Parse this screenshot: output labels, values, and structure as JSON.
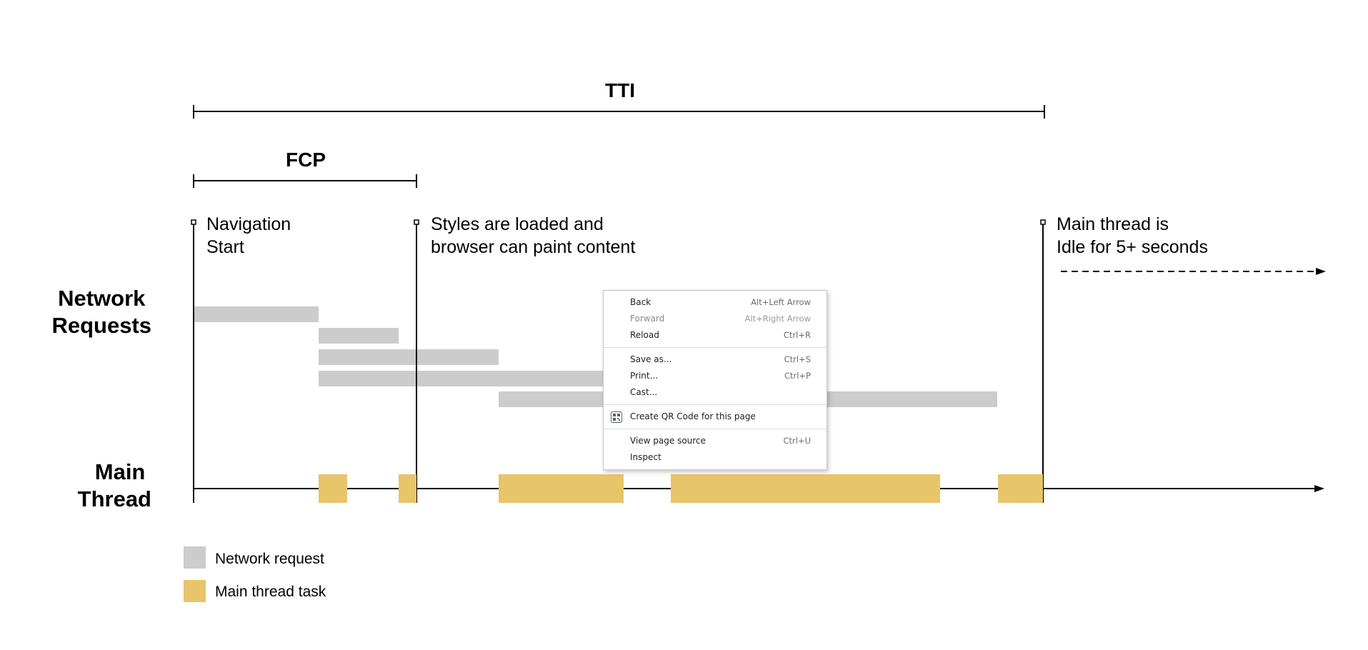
{
  "diagram": {
    "tti_label": "TTI",
    "fcp_label": "FCP",
    "navigation_start": [
      "Navigation",
      "Start"
    ],
    "styles_loaded": [
      "Styles are loaded and",
      "browser can paint content"
    ],
    "main_thread_idle": [
      "Main thread is",
      "Idle for 5+ seconds"
    ],
    "network_requests_label": [
      "Network",
      "Requests"
    ],
    "main_thread_label": [
      "Main",
      "Thread"
    ],
    "legend": {
      "network_request": "Network request",
      "main_thread_task": "Main thread task"
    },
    "colors": {
      "network_request": "#cccccc",
      "main_thread_task": "#e8c46a",
      "line": "#000000"
    }
  },
  "context_menu": {
    "items": [
      {
        "label": "Back",
        "shortcut": "Alt+Left Arrow",
        "disabled": false
      },
      {
        "label": "Forward",
        "shortcut": "Alt+Right Arrow",
        "disabled": true
      },
      {
        "label": "Reload",
        "shortcut": "Ctrl+R",
        "disabled": false
      },
      {
        "label": "Save as...",
        "shortcut": "Ctrl+S",
        "disabled": false
      },
      {
        "label": "Print...",
        "shortcut": "Ctrl+P",
        "disabled": false
      },
      {
        "label": "Cast...",
        "shortcut": "",
        "disabled": false
      },
      {
        "label": "Create QR Code for this page",
        "shortcut": "",
        "icon": "qr-code-icon",
        "disabled": false
      },
      {
        "label": "View page source",
        "shortcut": "Ctrl+U",
        "disabled": false
      },
      {
        "label": "Inspect",
        "shortcut": "",
        "disabled": false
      }
    ]
  }
}
